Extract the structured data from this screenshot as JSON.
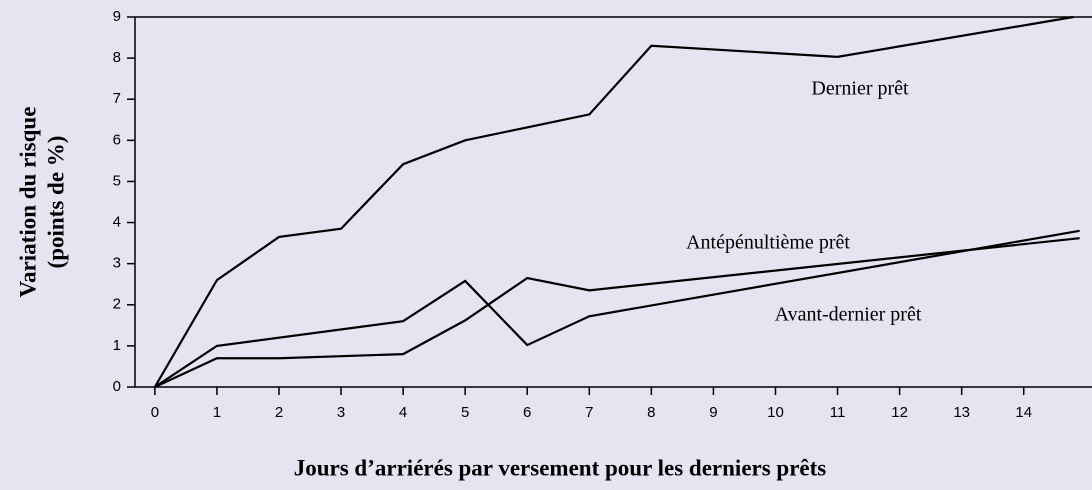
{
  "chart_data": {
    "type": "line",
    "x_label": "Jours d’arriérés par versement pour les derniers prêts",
    "y_label": [
      "Variation du risque",
      "(points de %)"
    ],
    "xlim": [
      -0.32,
      15.1
    ],
    "ylim": [
      0,
      9
    ],
    "xticks": [
      0,
      1,
      2,
      3,
      4,
      5,
      6,
      7,
      8,
      9,
      10,
      11,
      12,
      13,
      14
    ],
    "yticks": [
      0,
      1,
      2,
      3,
      4,
      5,
      6,
      7,
      8,
      9
    ],
    "series": [
      {
        "name": "Dernier prêt",
        "color": "#000000",
        "x": [
          0,
          1,
          2,
          3,
          4,
          5,
          7,
          8,
          11,
          14.8
        ],
        "values": [
          0,
          2.6,
          3.65,
          3.85,
          5.42,
          6.0,
          6.63,
          8.3,
          8.03,
          9.0
        ]
      },
      {
        "name": "Antépénultième prêt",
        "color": "#000000",
        "x": [
          0,
          1,
          4,
          5,
          6,
          7,
          14.9
        ],
        "values": [
          0,
          1.0,
          1.6,
          2.58,
          1.02,
          1.72,
          3.8
        ]
      },
      {
        "name": "Avant-dernier prêt",
        "color": "#000000",
        "x": [
          0,
          1,
          2,
          4,
          5,
          6,
          7,
          14.9
        ],
        "values": [
          0,
          0.7,
          0.7,
          0.8,
          1.62,
          2.65,
          2.35,
          3.62
        ]
      }
    ]
  }
}
